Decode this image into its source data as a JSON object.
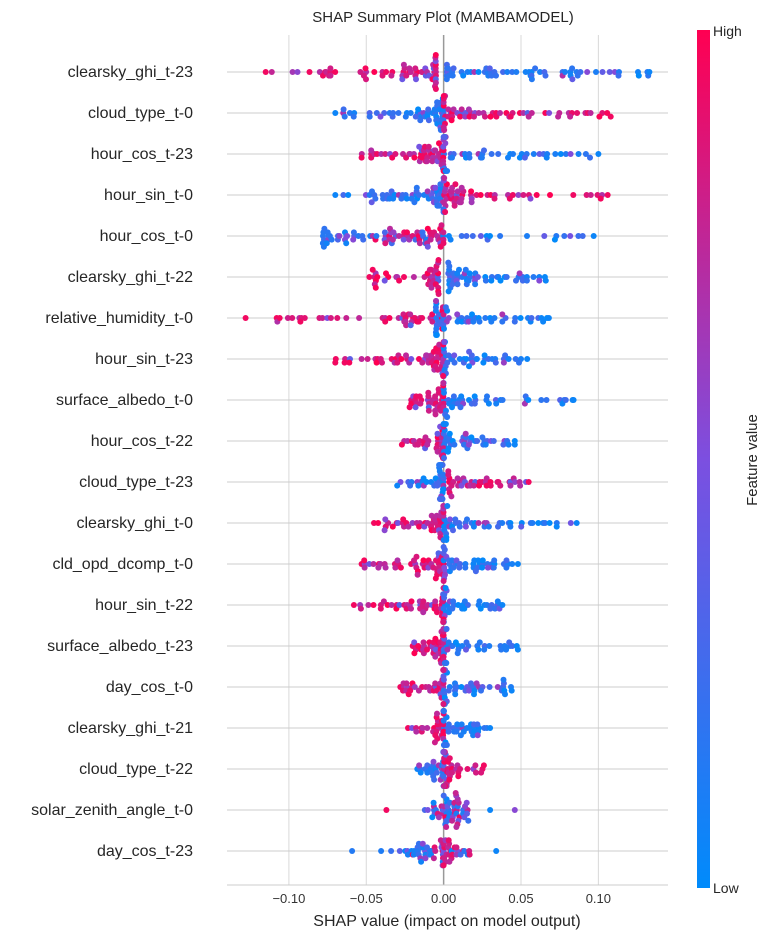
{
  "chart_data": {
    "type": "beeswarm",
    "title": "SHAP Summary Plot (MAMBAMODEL)",
    "xlabel": "SHAP value (impact on model output)",
    "xlim": [
      -0.14,
      0.145
    ],
    "xticks": [
      -0.1,
      -0.05,
      0.0,
      0.05,
      0.1
    ],
    "xtick_labels": [
      "−0.10",
      "−0.05",
      "0.00",
      "0.05",
      "0.10"
    ],
    "grid": true,
    "colorbar": {
      "label": "Feature value",
      "high_label": "High",
      "low_label": "Low",
      "low_color": "#008bfb",
      "mid_color": "#7c4fe0",
      "high_color": "#ff0052"
    },
    "features": [
      {
        "name": "clearsky_ghi_t-23",
        "high_side": "neg",
        "high_range": [
          -0.115,
          -0.005
        ],
        "low_range": [
          0.002,
          0.133
        ],
        "core": 0.06,
        "n": 120
      },
      {
        "name": "cloud_type_t-0",
        "high_side": "pos",
        "high_range": [
          0.0,
          0.108
        ],
        "low_range": [
          -0.07,
          0.0
        ],
        "core": 0.045,
        "n": 110
      },
      {
        "name": "hour_cos_t-23",
        "high_side": "neg",
        "high_range": [
          -0.053,
          0.0
        ],
        "low_range": [
          0.0,
          0.1
        ],
        "core": 0.04,
        "n": 100
      },
      {
        "name": "hour_sin_t-0",
        "high_side": "pos",
        "high_range": [
          0.0,
          0.106
        ],
        "low_range": [
          -0.07,
          0.0
        ],
        "core": 0.045,
        "n": 110
      },
      {
        "name": "hour_cos_t-0",
        "high_side": "neg",
        "high_range": [
          -0.044,
          0.0
        ],
        "low_range": [
          -0.078,
          0.097
        ],
        "core": 0.04,
        "n": 100
      },
      {
        "name": "clearsky_ghi_t-22",
        "high_side": "neg",
        "high_range": [
          -0.048,
          -0.003
        ],
        "low_range": [
          0.003,
          0.066
        ],
        "core": 0.03,
        "n": 90
      },
      {
        "name": "relative_humidity_t-0",
        "high_side": "neg",
        "high_range": [
          -0.128,
          0.0
        ],
        "low_range": [
          -0.005,
          0.068
        ],
        "core": 0.04,
        "n": 100
      },
      {
        "name": "hour_sin_t-23",
        "high_side": "neg",
        "high_range": [
          -0.07,
          0.0
        ],
        "low_range": [
          0.0,
          0.054
        ],
        "core": 0.035,
        "n": 100
      },
      {
        "name": "surface_albedo_t-0",
        "high_side": "neg",
        "high_range": [
          -0.022,
          0.0
        ],
        "low_range": [
          0.0,
          0.084
        ],
        "core": 0.03,
        "n": 80
      },
      {
        "name": "hour_cos_t-22",
        "high_side": "neg",
        "high_range": [
          -0.027,
          0.0
        ],
        "low_range": [
          0.0,
          0.046
        ],
        "core": 0.03,
        "n": 80
      },
      {
        "name": "cloud_type_t-23",
        "high_side": "pos",
        "high_range": [
          0.003,
          0.055
        ],
        "low_range": [
          -0.03,
          0.0
        ],
        "core": 0.03,
        "n": 80
      },
      {
        "name": "clearsky_ghi_t-0",
        "high_side": "neg",
        "high_range": [
          -0.045,
          0.0
        ],
        "low_range": [
          0.0,
          0.086
        ],
        "core": 0.035,
        "n": 90
      },
      {
        "name": "cld_opd_dcomp_t-0",
        "high_side": "neg",
        "high_range": [
          -0.053,
          0.0
        ],
        "low_range": [
          0.0,
          0.048
        ],
        "core": 0.035,
        "n": 90
      },
      {
        "name": "hour_sin_t-22",
        "high_side": "neg",
        "high_range": [
          -0.058,
          0.0
        ],
        "low_range": [
          0.0,
          0.038
        ],
        "core": 0.03,
        "n": 80
      },
      {
        "name": "surface_albedo_t-23",
        "high_side": "neg",
        "high_range": [
          -0.02,
          0.0
        ],
        "low_range": [
          0.0,
          0.048
        ],
        "core": 0.025,
        "n": 75
      },
      {
        "name": "day_cos_t-0",
        "high_side": "neg",
        "high_range": [
          -0.028,
          0.0
        ],
        "low_range": [
          0.0,
          0.044
        ],
        "core": 0.03,
        "n": 75
      },
      {
        "name": "clearsky_ghi_t-21",
        "high_side": "neg",
        "high_range": [
          -0.023,
          0.0
        ],
        "low_range": [
          0.0,
          0.03
        ],
        "core": 0.02,
        "n": 70
      },
      {
        "name": "cloud_type_t-22",
        "high_side": "pos",
        "high_range": [
          0.0,
          0.026
        ],
        "low_range": [
          -0.017,
          0.0
        ],
        "core": 0.015,
        "n": 65
      },
      {
        "name": "solar_zenith_angle_t-0",
        "high_side": "mixed",
        "high_range": [
          -0.037,
          0.055
        ],
        "low_range": [
          -0.025,
          0.03
        ],
        "core": 0.02,
        "n": 55
      },
      {
        "name": "day_cos_t-23",
        "high_side": "mixed",
        "high_range": [
          -0.02,
          0.02
        ],
        "low_range": [
          -0.064,
          0.034
        ],
        "core": 0.02,
        "n": 65
      }
    ]
  }
}
